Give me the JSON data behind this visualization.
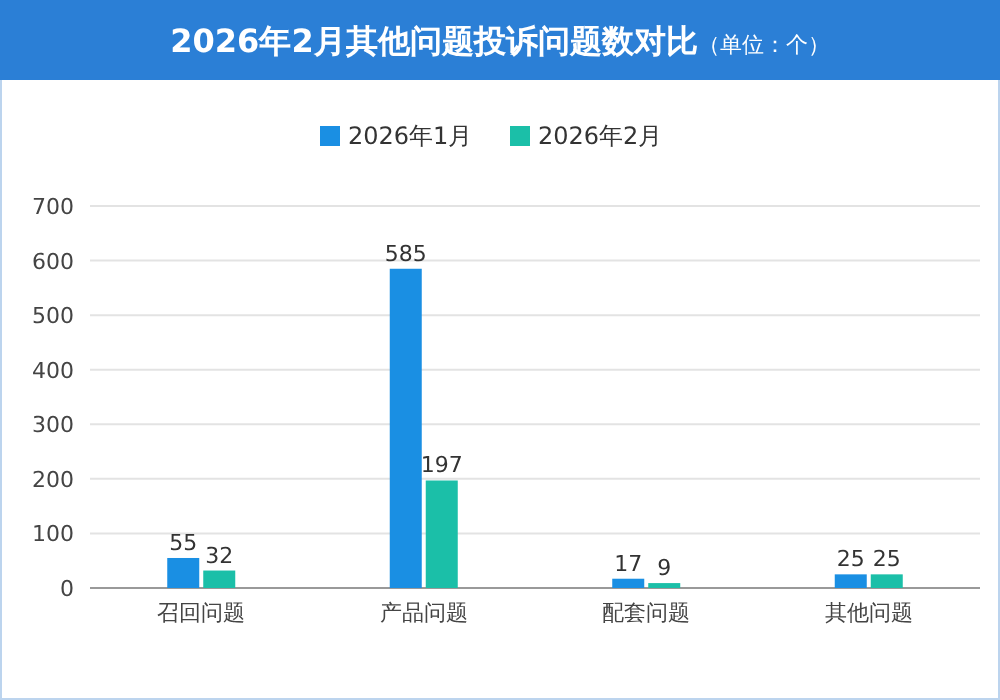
{
  "chart_data": {
    "type": "bar",
    "title": "2026年2月其他问题投诉问题数对比",
    "subtitle": "（单位：个）",
    "categories": [
      "召回问题",
      "产品问题",
      "配套问题",
      "其他问题"
    ],
    "series": [
      {
        "name": "2026年1月",
        "color": "#1a8fe3",
        "values": [
          55,
          585,
          17,
          25
        ]
      },
      {
        "name": "2026年2月",
        "color": "#1bbfa8",
        "values": [
          32,
          197,
          9,
          25
        ]
      }
    ],
    "ylim": [
      0,
      700
    ],
    "yticks": [
      0,
      100,
      200,
      300,
      400,
      500,
      600,
      700
    ],
    "grid": "y",
    "legend": "top",
    "data_labels": true
  }
}
